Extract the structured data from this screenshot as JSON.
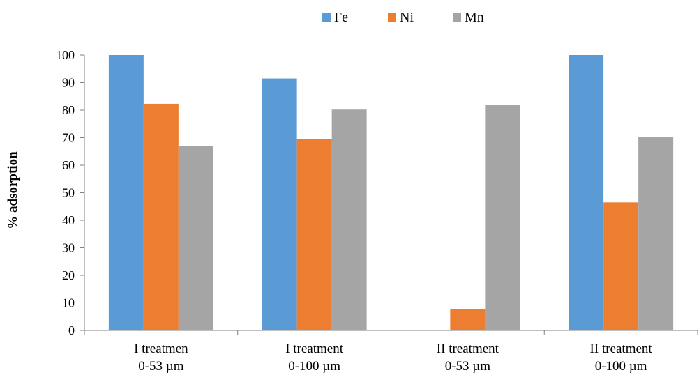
{
  "chart_data": {
    "type": "bar",
    "categories": [
      [
        "I treatmen",
        "0-53 µm"
      ],
      [
        "I treatment",
        "0-100 µm"
      ],
      [
        "II treatment",
        "0-53 µm"
      ],
      [
        "II treatment",
        "0-100 µm"
      ]
    ],
    "series": [
      {
        "name": "Fe",
        "color": "#5b9bd5",
        "values": [
          100,
          91.5,
          0,
          100
        ]
      },
      {
        "name": "Ni",
        "color": "#ed7d31",
        "values": [
          82.3,
          69.5,
          7.8,
          46.5
        ]
      },
      {
        "name": "Mn",
        "color": "#a5a5a5",
        "values": [
          67,
          80.2,
          81.8,
          70.2
        ]
      }
    ],
    "xlabel": "",
    "ylabel": "% adsorption",
    "ylim": [
      0,
      100
    ],
    "yticks": [
      0,
      10,
      20,
      30,
      40,
      50,
      60,
      70,
      80,
      90,
      100
    ],
    "grid": false,
    "legend_position": "top-center"
  }
}
